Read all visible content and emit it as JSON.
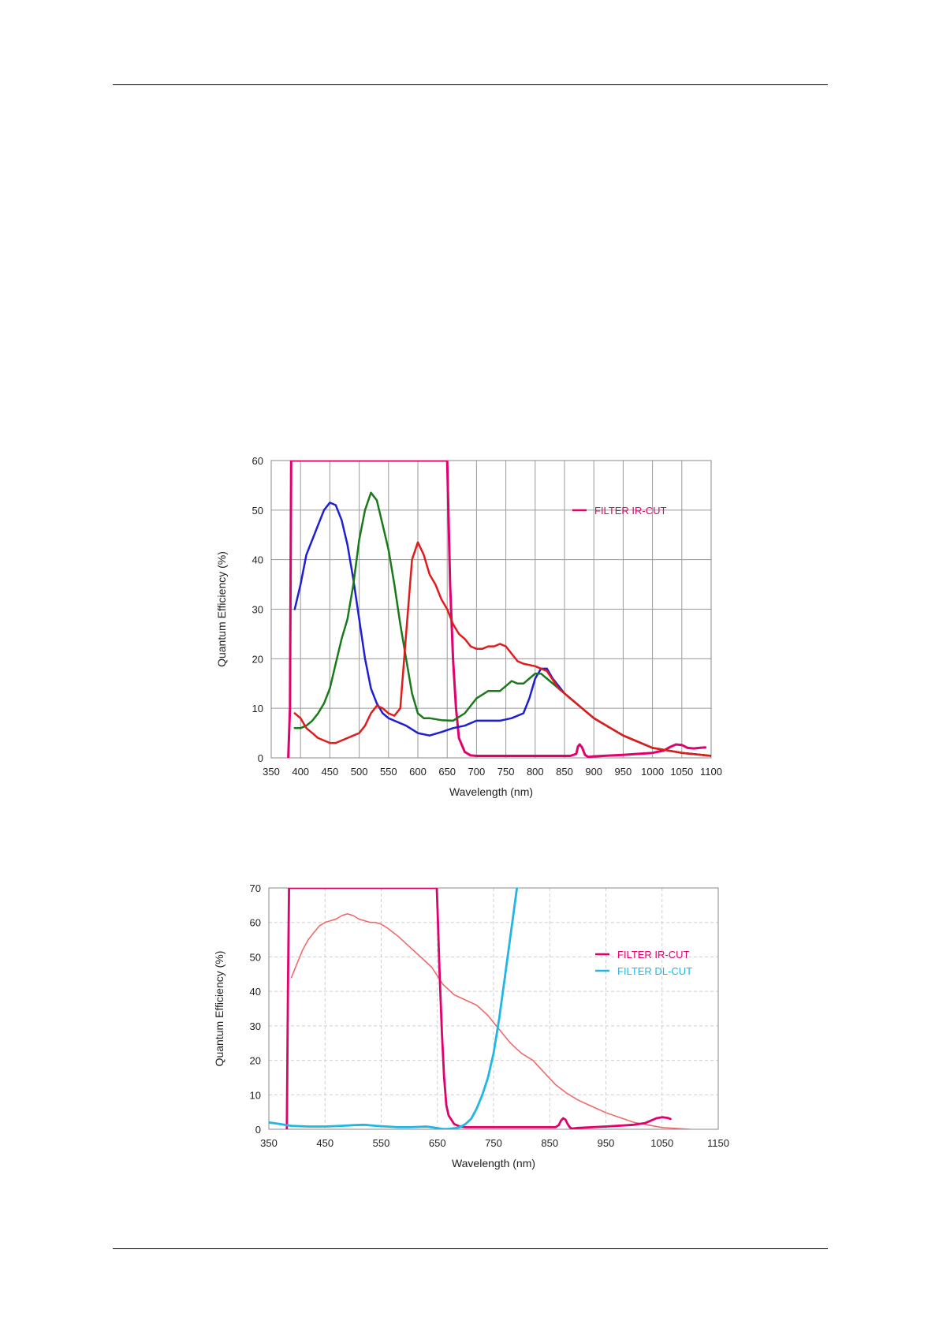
{
  "chart_data": [
    {
      "type": "line",
      "xlabel": "Wavelength (nm)",
      "ylabel": "Quantum Efficiency (%)",
      "xlim": [
        350,
        1100
      ],
      "ylim": [
        0,
        60
      ],
      "xticks": [
        "350",
        "400",
        "450",
        "500",
        "550",
        "600",
        "650",
        "700",
        "750",
        "800",
        "850",
        "900",
        "950",
        "1000",
        "1050",
        "1100"
      ],
      "yticks": [
        "0",
        "10",
        "20",
        "30",
        "40",
        "50",
        "60"
      ],
      "grid": "solid",
      "legend_position": "top-right",
      "series": [
        {
          "name": "FILTER IR-CUT",
          "color": "#e0006e",
          "width": 3,
          "legend": true,
          "x": [
            379,
            382,
            384,
            650,
            652,
            655,
            660,
            665,
            670,
            680,
            690,
            700,
            720,
            750,
            800,
            850,
            860,
            870,
            873,
            876,
            880,
            885,
            890,
            893,
            900,
            950,
            1000,
            1020,
            1030,
            1040,
            1050,
            1060,
            1070,
            1080,
            1090
          ],
          "y": [
            0,
            10,
            60,
            60,
            50,
            35,
            20,
            10,
            4,
            1.2,
            0.5,
            0.4,
            0.4,
            0.4,
            0.4,
            0.4,
            0.4,
            0.8,
            2.3,
            2.7,
            2.1,
            0.6,
            0.2,
            0.2,
            0.3,
            0.6,
            1.0,
            1.5,
            2.2,
            2.7,
            2.6,
            2.0,
            1.9,
            2.0,
            2.1
          ]
        },
        {
          "name": "",
          "color": "#1d1fd6",
          "width": 2.5,
          "legend": false,
          "x": [
            390,
            400,
            410,
            420,
            430,
            440,
            450,
            460,
            470,
            480,
            490,
            500,
            510,
            520,
            530,
            540,
            550,
            560,
            580,
            600,
            620,
            640,
            660,
            680,
            700,
            720,
            740,
            760,
            780,
            790,
            800,
            810,
            820,
            830,
            850,
            870,
            900,
            950,
            1000,
            1050,
            1100
          ],
          "y": [
            30,
            35,
            41,
            44,
            47,
            50,
            51.5,
            51,
            48,
            43,
            36,
            28,
            20,
            14,
            11,
            9,
            8,
            7.5,
            6.5,
            5,
            4.5,
            5.2,
            6,
            6.5,
            7.5,
            7.5,
            7.5,
            8,
            9,
            12,
            16,
            18,
            18,
            16,
            13,
            11,
            8,
            4.5,
            2,
            1,
            0.4
          ]
        },
        {
          "name": "",
          "color": "#1a7a1a",
          "width": 2.5,
          "legend": false,
          "x": [
            390,
            400,
            410,
            420,
            430,
            440,
            450,
            460,
            470,
            480,
            490,
            500,
            510,
            520,
            530,
            540,
            550,
            560,
            570,
            580,
            590,
            600,
            610,
            620,
            640,
            660,
            680,
            700,
            720,
            740,
            750,
            760,
            770,
            780,
            790,
            800,
            810,
            820,
            840,
            860,
            900,
            950,
            1000,
            1050,
            1100
          ],
          "y": [
            6,
            6,
            6.5,
            7.5,
            9,
            11,
            14,
            19,
            24,
            28,
            35,
            44,
            50,
            53.5,
            52,
            47,
            42,
            35,
            27,
            20,
            13,
            9,
            8,
            8,
            7.6,
            7.5,
            9,
            12,
            13.5,
            13.5,
            14.5,
            15.5,
            15,
            15,
            16,
            17,
            17,
            16,
            14,
            12,
            8,
            4.5,
            2,
            1,
            0.4
          ]
        },
        {
          "name": "",
          "color": "#e31a1a",
          "width": 2.5,
          "legend": false,
          "x": [
            390,
            400,
            410,
            420,
            430,
            440,
            450,
            460,
            470,
            480,
            490,
            500,
            510,
            520,
            530,
            540,
            550,
            560,
            570,
            580,
            590,
            600,
            610,
            620,
            630,
            640,
            650,
            660,
            670,
            680,
            690,
            700,
            710,
            720,
            730,
            740,
            750,
            760,
            770,
            780,
            800,
            820,
            840,
            860,
            900,
            950,
            1000,
            1050,
            1100
          ],
          "y": [
            9,
            8,
            6,
            5,
            4,
            3.5,
            3,
            3,
            3.5,
            4,
            4.5,
            5,
            6.5,
            9,
            10.5,
            10,
            9,
            8.5,
            10,
            25,
            40,
            43.5,
            41,
            37,
            35,
            32,
            30,
            27,
            25,
            24,
            22.5,
            22,
            22,
            22.5,
            22.5,
            23,
            22.5,
            21,
            19.5,
            19,
            18.5,
            17.5,
            14,
            12,
            8,
            4.5,
            2,
            1,
            0.4
          ]
        }
      ]
    },
    {
      "type": "line",
      "xlabel": "Wavelength (nm)",
      "ylabel": "Quantum Efficiency (%)",
      "xlim": [
        350,
        1150
      ],
      "ylim": [
        0,
        70
      ],
      "xticks": [
        "350",
        "450",
        "550",
        "650",
        "750",
        "850",
        "950",
        "1050",
        "1150"
      ],
      "yticks": [
        "0",
        "10",
        "20",
        "30",
        "40",
        "50",
        "60",
        "70"
      ],
      "grid": "dashed",
      "legend_position": "right",
      "series": [
        {
          "name": "",
          "color": "#f06a6a",
          "width": 1.6,
          "legend": false,
          "x": [
            390,
            400,
            410,
            420,
            430,
            440,
            450,
            460,
            470,
            480,
            490,
            500,
            510,
            520,
            530,
            540,
            550,
            560,
            580,
            600,
            620,
            640,
            660,
            680,
            700,
            720,
            740,
            760,
            780,
            800,
            820,
            840,
            860,
            880,
            900,
            920,
            950,
            1000,
            1050,
            1100
          ],
          "y": [
            44,
            48,
            52,
            55,
            57,
            59,
            60,
            60.5,
            61,
            62,
            62.5,
            62,
            61,
            60.5,
            60,
            60,
            59.5,
            58.5,
            56,
            53,
            50,
            47,
            42,
            39,
            37.5,
            36,
            33,
            29,
            25,
            22,
            20,
            16.5,
            13,
            10.5,
            8.5,
            7,
            4.8,
            2,
            0.5,
            0
          ]
        },
        {
          "name": "FILTER IR-CUT",
          "color": "#e0006e",
          "width": 2.8,
          "legend": true,
          "x": [
            382,
            384,
            386,
            649,
            651,
            654,
            658,
            662,
            666,
            670,
            680,
            690,
            700,
            720,
            750,
            800,
            850,
            860,
            866,
            870,
            874,
            878,
            882,
            886,
            890,
            900,
            950,
            1000,
            1020,
            1030,
            1040,
            1050,
            1060,
            1065
          ],
          "y": [
            0,
            40,
            70,
            70,
            60,
            45,
            28,
            15,
            7,
            4,
            1.5,
            0.8,
            0.6,
            0.6,
            0.6,
            0.6,
            0.6,
            0.6,
            1.2,
            2.5,
            3.2,
            2.8,
            1.5,
            0.5,
            0.2,
            0.4,
            0.8,
            1.3,
            1.8,
            2.5,
            3.2,
            3.5,
            3.3,
            3.0
          ]
        },
        {
          "name": "FILTER DL-CUT",
          "color": "#22b6e3",
          "width": 2.8,
          "legend": true,
          "x": [
            350,
            370,
            390,
            420,
            450,
            480,
            500,
            520,
            540,
            560,
            580,
            600,
            620,
            630,
            640,
            660,
            670,
            680,
            690,
            700,
            710,
            720,
            730,
            740,
            750,
            760,
            770,
            780,
            790,
            800
          ],
          "y": [
            2,
            1.5,
            1,
            0.8,
            0.8,
            1,
            1.2,
            1.3,
            1,
            0.8,
            0.6,
            0.6,
            0.7,
            0.8,
            0.6,
            0.1,
            0.1,
            0.3,
            0.6,
            1.5,
            3,
            6,
            10,
            15,
            22,
            32,
            44,
            56,
            68,
            80
          ]
        }
      ]
    }
  ]
}
